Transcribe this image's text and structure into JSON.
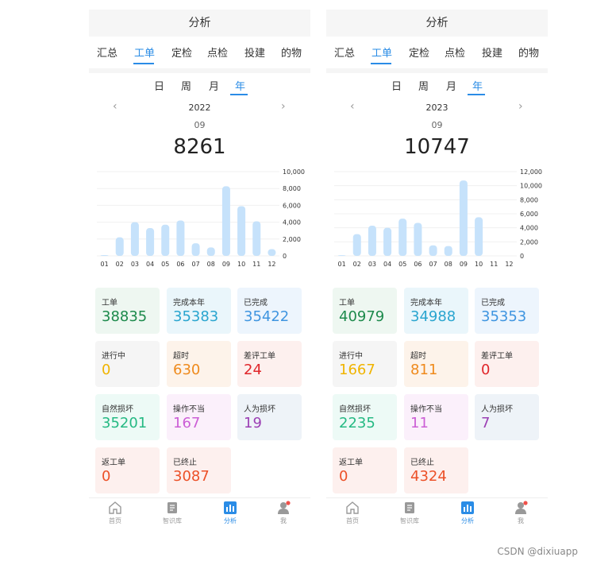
{
  "screens": [
    {
      "header_title": "分析",
      "tabs": [
        "汇总",
        "工单",
        "定检",
        "点检",
        "投建",
        "的物"
      ],
      "active_tab": 1,
      "periods": [
        "日",
        "周",
        "月",
        "年"
      ],
      "active_period": 3,
      "year": "2022",
      "month": "09",
      "total": "8261",
      "cards": [
        {
          "label": "工单",
          "value": "38835"
        },
        {
          "label": "完成本年",
          "value": "35383"
        },
        {
          "label": "已完成",
          "value": "35422"
        },
        {
          "label": "进行中",
          "value": "0"
        },
        {
          "label": "超时",
          "value": "630"
        },
        {
          "label": "差评工单",
          "value": "24"
        },
        {
          "label": "自然损坏",
          "value": "35201"
        },
        {
          "label": "操作不当",
          "value": "167"
        },
        {
          "label": "人为损坏",
          "value": "19"
        },
        {
          "label": "返工单",
          "value": "0"
        },
        {
          "label": "已终止",
          "value": "3087"
        }
      ],
      "tabbar": [
        "首页",
        "智识库",
        "分析",
        "我"
      ],
      "active_tabbar": 2
    },
    {
      "header_title": "分析",
      "tabs": [
        "汇总",
        "工单",
        "定检",
        "点检",
        "投建",
        "的物"
      ],
      "active_tab": 1,
      "periods": [
        "日",
        "周",
        "月",
        "年"
      ],
      "active_period": 3,
      "year": "2023",
      "month": "09",
      "total": "10747",
      "cards": [
        {
          "label": "工单",
          "value": "40979"
        },
        {
          "label": "完成本年",
          "value": "34988"
        },
        {
          "label": "已完成",
          "value": "35353"
        },
        {
          "label": "进行中",
          "value": "1667"
        },
        {
          "label": "超时",
          "value": "811"
        },
        {
          "label": "差评工单",
          "value": "0"
        },
        {
          "label": "自然损坏",
          "value": "2235"
        },
        {
          "label": "操作不当",
          "value": "11"
        },
        {
          "label": "人为损坏",
          "value": "7"
        },
        {
          "label": "返工单",
          "value": "0"
        },
        {
          "label": "已终止",
          "value": "4324"
        }
      ],
      "tabbar": [
        "首页",
        "智识库",
        "分析",
        "我"
      ],
      "active_tabbar": 2
    }
  ],
  "card_colors": [
    {
      "bg": "#eef7f1",
      "fg": "#1d8a4c"
    },
    {
      "bg": "#eaf6fb",
      "fg": "#2aa5cf"
    },
    {
      "bg": "#edf5fd",
      "fg": "#3f95e0"
    },
    {
      "bg": "#f5f5f5",
      "fg": "#f0b400"
    },
    {
      "bg": "#fdf3ea",
      "fg": "#ef8a1c"
    },
    {
      "bg": "#fdf0ee",
      "fg": "#e0262a"
    },
    {
      "bg": "#edfaf6",
      "fg": "#25b983"
    },
    {
      "bg": "#fbf0fb",
      "fg": "#cc5ed6"
    },
    {
      "bg": "#eef3f8",
      "fg": "#9b3fb4"
    },
    {
      "bg": "#fdf0ee",
      "fg": "#ec5128"
    },
    {
      "bg": "#fdf0ee",
      "fg": "#ec5128"
    }
  ],
  "chart_data": [
    {
      "type": "bar",
      "categories": [
        "01",
        "02",
        "03",
        "04",
        "05",
        "06",
        "07",
        "08",
        "09",
        "10",
        "11",
        "12"
      ],
      "values": [
        100,
        2200,
        4000,
        3300,
        3700,
        4200,
        1500,
        1000,
        8261,
        5900,
        4100,
        800
      ],
      "ylim": [
        0,
        10000
      ],
      "yticks": [
        "0",
        "2,000",
        "4,000",
        "6,000",
        "8,000",
        "10,000"
      ],
      "bar_color": "#c6e2fb"
    },
    {
      "type": "bar",
      "categories": [
        "01",
        "02",
        "03",
        "04",
        "05",
        "06",
        "07",
        "08",
        "09",
        "10",
        "11",
        "12"
      ],
      "values": [
        100,
        3100,
        4300,
        4000,
        5300,
        4700,
        1500,
        1400,
        10747,
        5500,
        0,
        0
      ],
      "ylim": [
        0,
        12000
      ],
      "yticks": [
        "0",
        "2,000",
        "4,000",
        "6,000",
        "8,000",
        "10,000",
        "12,000"
      ],
      "bar_color": "#c6e2fb"
    }
  ],
  "watermark": "CSDN @dixiuapp",
  "colors": {
    "accent": "#2a8ce6",
    "muted": "#999999"
  }
}
